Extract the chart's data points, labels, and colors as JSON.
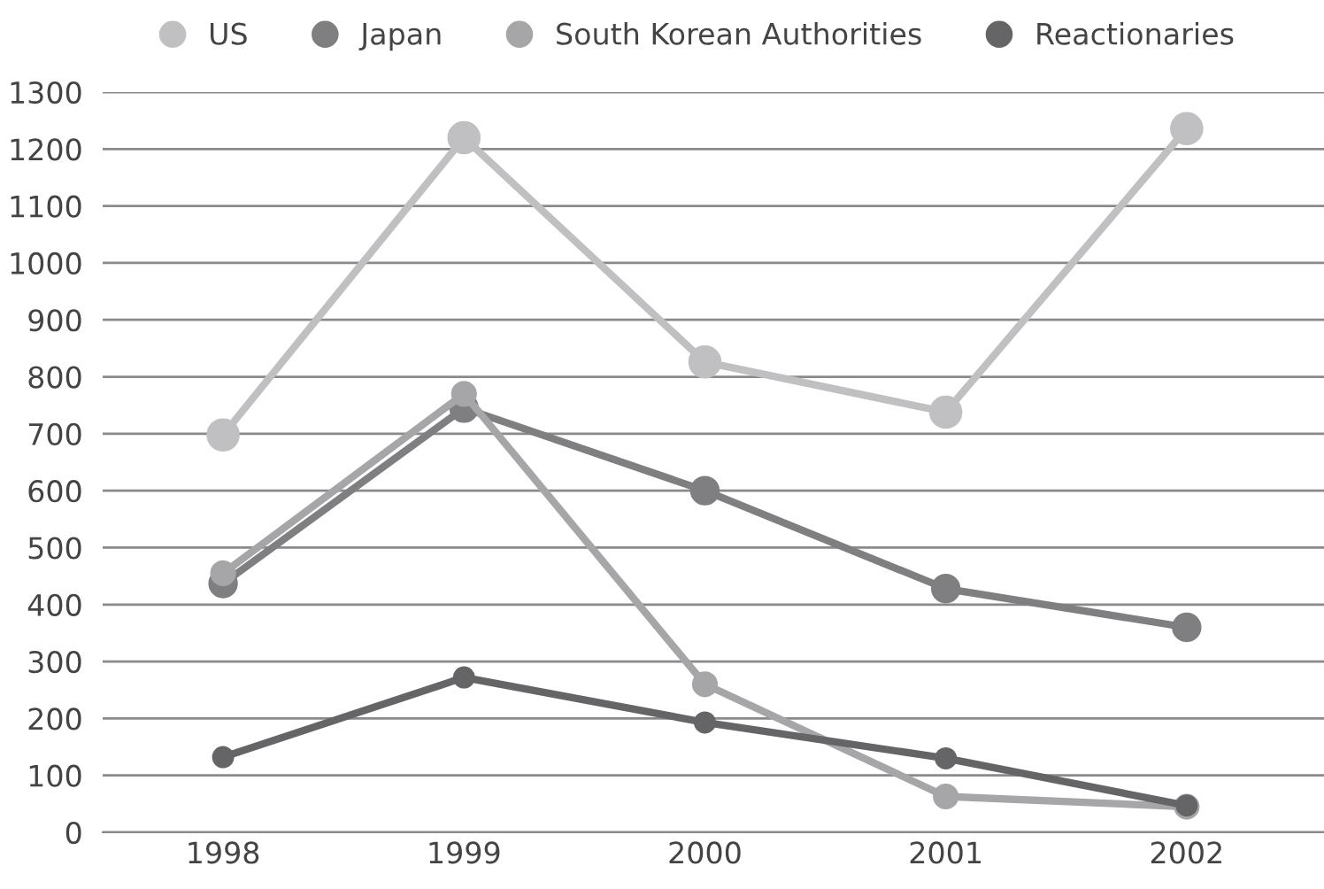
{
  "chart_data": {
    "type": "line",
    "categories": [
      "1998",
      "1999",
      "2000",
      "2001",
      "2002"
    ],
    "series": [
      {
        "name": "US",
        "color": "#c0c0c2",
        "values": [
          698,
          1220,
          826,
          738,
          1236
        ]
      },
      {
        "name": "Japan",
        "color": "#7f7f82",
        "values": [
          437,
          745,
          600,
          428,
          360
        ]
      },
      {
        "name": "South Korean Authorities",
        "color": "#a6a6a8",
        "values": [
          455,
          770,
          260,
          63,
          45
        ]
      },
      {
        "name": "Reactionaries",
        "color": "#656568",
        "values": [
          132,
          272,
          193,
          130,
          47
        ]
      }
    ],
    "ylim": [
      0,
      1300
    ],
    "yticks": [
      0,
      100,
      200,
      300,
      400,
      500,
      600,
      700,
      800,
      900,
      1000,
      1100,
      1200,
      1300
    ],
    "grid": "y",
    "legend": "top",
    "marker": "circle",
    "line_style": "solid"
  }
}
